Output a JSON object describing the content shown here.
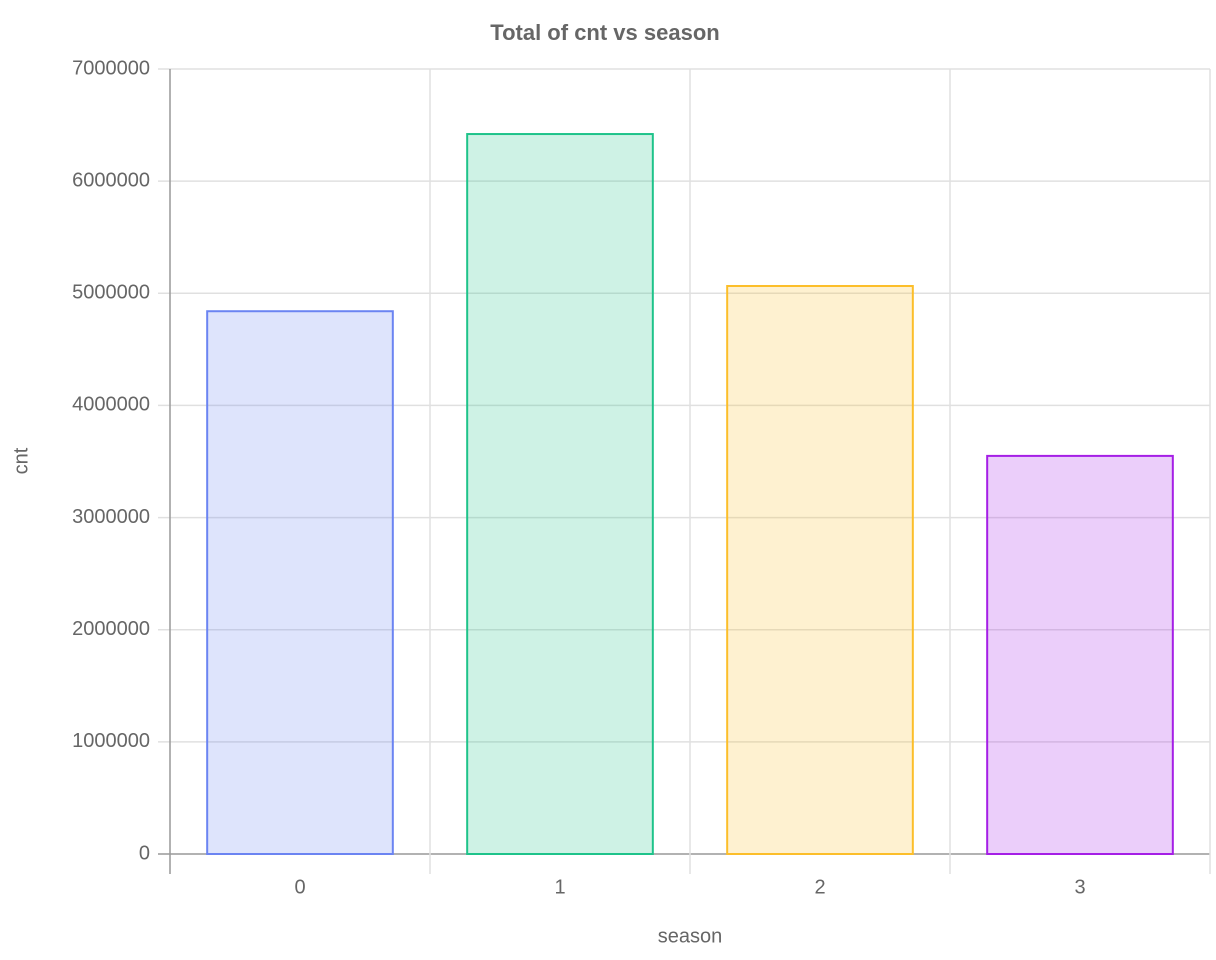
{
  "chart_data": {
    "type": "bar",
    "title": "Total of cnt vs season",
    "x_label": "season",
    "y_label": "cnt",
    "categories": [
      "0",
      "1",
      "2",
      "3"
    ],
    "values": [
      4840000,
      6420000,
      5065000,
      3550000
    ],
    "colors": [
      "#6b84f2",
      "#1ec38a",
      "#fcbe2a",
      "#a51ee6"
    ],
    "ylim": [
      0,
      7000000
    ],
    "yticks": [
      0,
      1000000,
      2000000,
      3000000,
      4000000,
      5000000,
      6000000,
      7000000
    ],
    "grid": true
  }
}
